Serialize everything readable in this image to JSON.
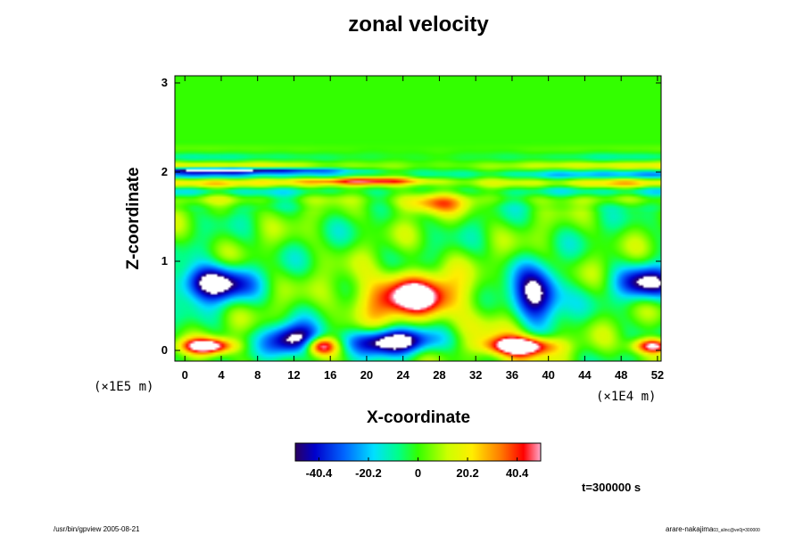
{
  "chart_data": {
    "type": "heatmap",
    "title": "zonal velocity",
    "xlabel": "X-coordinate",
    "ylabel": "Z-coordinate",
    "x_scale_note": "(×1E4 m)",
    "y_scale_note": "(×1E5 m)",
    "x_ticks": [
      "0",
      "4",
      "8",
      "12",
      "16",
      "20",
      "24",
      "28",
      "32",
      "36",
      "40",
      "44",
      "48",
      "52"
    ],
    "y_ticks": [
      "0",
      "1",
      "2",
      "3"
    ],
    "xlim": [
      -1.1,
      52.4
    ],
    "ylim": [
      -0.12,
      3.08
    ],
    "colorbar": {
      "ticks": [
        "-40.4",
        "-20.2",
        "0",
        "20.2",
        "40.4"
      ],
      "tick_values": [
        -40.4,
        -20.2,
        0,
        20.2,
        40.4
      ],
      "range": [
        -50,
        50
      ]
    },
    "features": [
      {
        "kind": "max",
        "x": 2.5,
        "z": 0.05,
        "value": 52
      },
      {
        "kind": "max",
        "x": 15,
        "z": 0.05,
        "value": 48
      },
      {
        "kind": "max",
        "x": 25,
        "z": 0.6,
        "value": 50
      },
      {
        "kind": "max",
        "x": 37,
        "z": 0.05,
        "value": 52
      },
      {
        "kind": "max",
        "x": 51.5,
        "z": 0.05,
        "value": 50
      },
      {
        "kind": "max",
        "x": 20,
        "z": 1.9,
        "value": 40
      },
      {
        "kind": "max",
        "x": 27,
        "z": 1.65,
        "value": 30
      },
      {
        "kind": "min",
        "x": 3,
        "z": 0.75,
        "value": -52
      },
      {
        "kind": "min",
        "x": 38.5,
        "z": 0.6,
        "value": -52
      },
      {
        "kind": "min",
        "x": 51,
        "z": 0.75,
        "value": -45
      },
      {
        "kind": "min",
        "x": 12,
        "z": 0.1,
        "value": -50
      },
      {
        "kind": "min",
        "x": 23,
        "z": 0.1,
        "value": -55
      },
      {
        "kind": "min",
        "x": 5,
        "z": 2.02,
        "value": -45
      }
    ]
  },
  "time_label": "t=300000 s",
  "footer": {
    "left": "/usr/bin/gpview 2005-08-21",
    "right": "arare-nakajima",
    "right_small": "03_alinc@ve0j=300000"
  },
  "colors": {
    "background": "#ffffff",
    "colormap": [
      "#2a0060",
      "#0000cc",
      "#0066ff",
      "#00e0ff",
      "#00ff66",
      "#33ff00",
      "#ffff00",
      "#ff8800",
      "#ff0000",
      "#ff99cc"
    ]
  }
}
